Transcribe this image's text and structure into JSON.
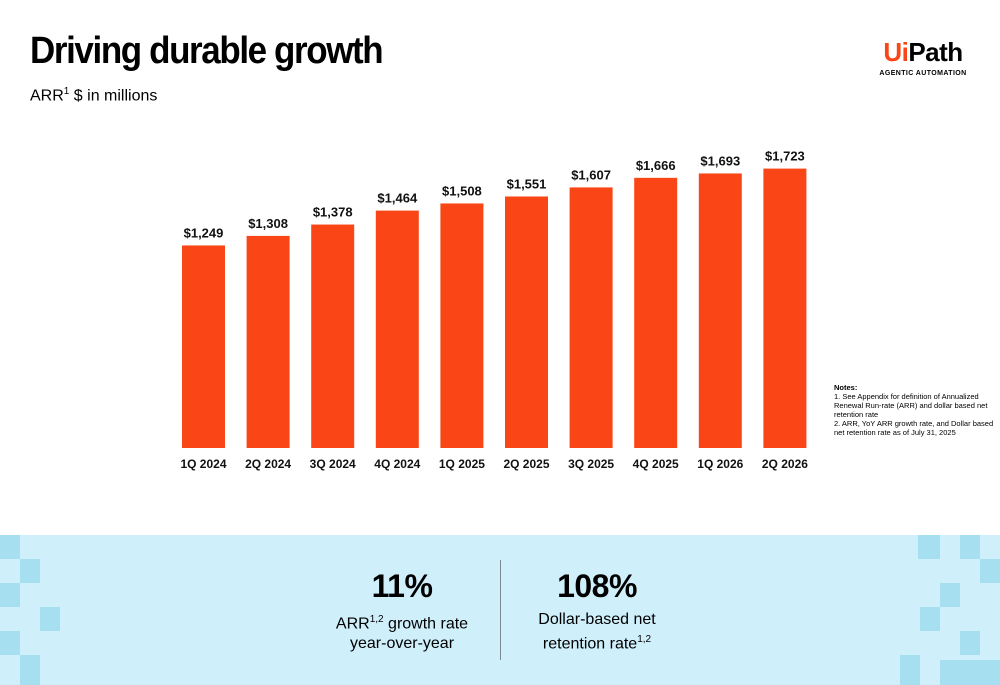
{
  "slide": {
    "title": "Driving durable growth",
    "subtitle_main": "ARR",
    "subtitle_sup": "1",
    "subtitle_rest": " $ in millions"
  },
  "logo": {
    "word_ui": "Ui",
    "word_path": "Path",
    "tagline": "AGENTIC AUTOMATION"
  },
  "chart_data": {
    "type": "bar",
    "categories": [
      "1Q 2024",
      "2Q 2024",
      "3Q 2024",
      "4Q 2024",
      "1Q 2025",
      "2Q 2025",
      "3Q 2025",
      "4Q 2025",
      "1Q 2026",
      "2Q 2026"
    ],
    "values": [
      1249,
      1308,
      1378,
      1464,
      1508,
      1551,
      1607,
      1666,
      1693,
      1723
    ],
    "value_labels": [
      "$1,249",
      "$1,308",
      "$1,378",
      "$1,464",
      "$1,508",
      "$1,551",
      "$1,607",
      "$1,666",
      "$1,693",
      "$1,723"
    ],
    "bar_color": "#fa4616",
    "ylim": [
      0,
      1850
    ],
    "grid": false,
    "legend": "none"
  },
  "notes": {
    "heading": "Notes:",
    "items": [
      "1. See Appendix for definition of Annualized Renewal Run-rate (ARR) and dollar based net retention rate",
      "2. ARR, YoY ARR growth rate, and Dollar based net retention rate as of July 31, 2025"
    ]
  },
  "stats": [
    {
      "value": "11%",
      "line1_main": "ARR",
      "line1_sup": "1,2",
      "line1_rest": " growth rate",
      "line2": "year-over-year"
    },
    {
      "value": "108%",
      "line1": "Dollar-based net",
      "line2_main": "retention rate",
      "line2_sup": "1,2"
    }
  ],
  "colors": {
    "accent": "#fa4616",
    "band": "#cfeffb",
    "band_squares": "#a6e0f0"
  }
}
